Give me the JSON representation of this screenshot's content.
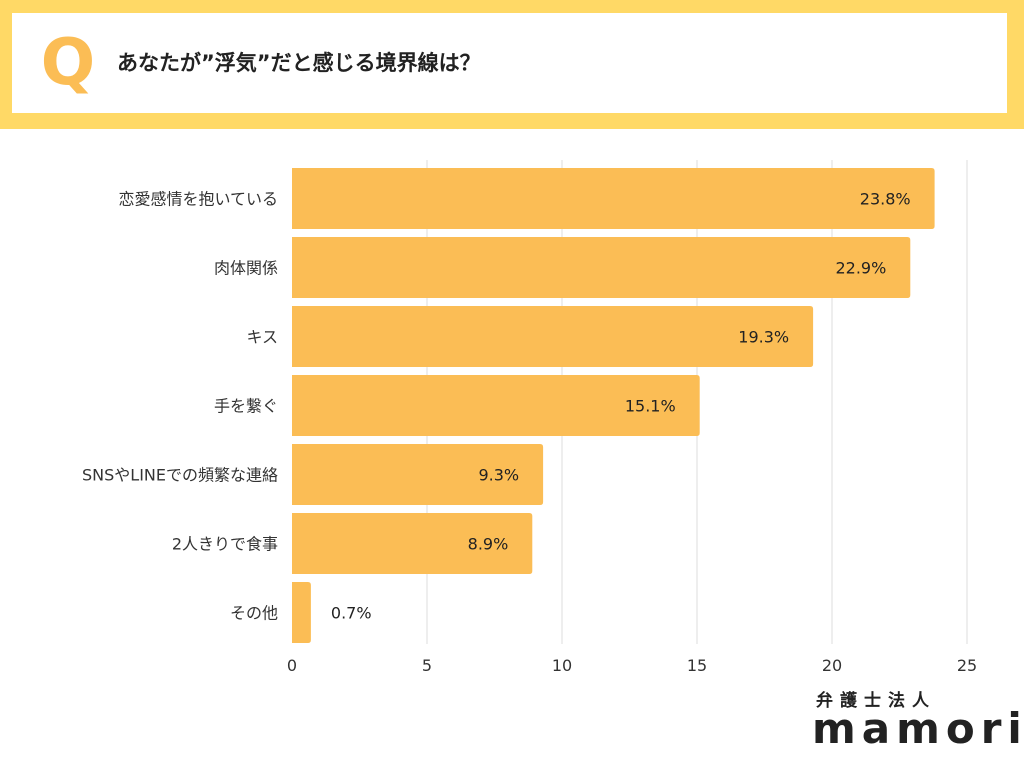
{
  "header": {
    "q_letter": "Q",
    "question": "あなたが”浮気”だと感じる境界線は？"
  },
  "colors": {
    "bar": "#fbbd55",
    "header_bg": "#ffd966",
    "grid": "#dddddd"
  },
  "chart_data": {
    "type": "bar",
    "orientation": "horizontal",
    "title": "あなたが”浮気”だと感じる境界線は？",
    "categories": [
      "恋愛感情を抱いている",
      "肉体関係",
      "キス",
      "手を繋ぐ",
      "SNSやLINEでの頻繁な連絡",
      "2人きりで食事",
      "その他"
    ],
    "values": [
      23.8,
      22.9,
      19.3,
      15.1,
      9.3,
      8.9,
      0.7
    ],
    "value_labels": [
      "23.8%",
      "22.9%",
      "19.3%",
      "15.1%",
      "9.3%",
      "8.9%",
      "0.7%"
    ],
    "xlim": [
      0,
      25
    ],
    "xticks": [
      0,
      5,
      10,
      15,
      20,
      25
    ],
    "xtick_labels": [
      "0",
      "5",
      "10",
      "15",
      "20",
      "25"
    ],
    "xlabel": "",
    "ylabel": "",
    "grid": true,
    "legend": "none"
  },
  "logo": {
    "line1": "弁護士法人",
    "line2": "mamori"
  }
}
